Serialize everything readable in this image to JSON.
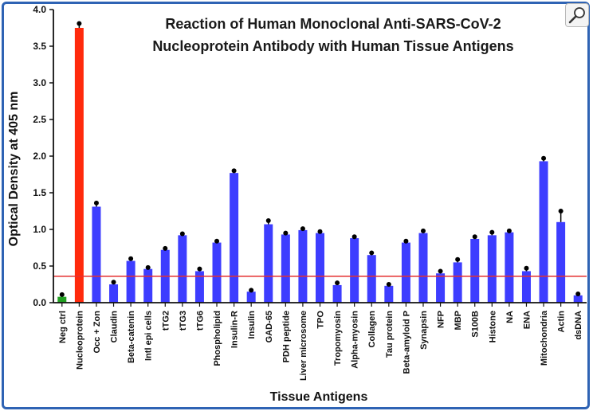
{
  "chart_data": {
    "type": "bar",
    "title_lines": [
      "Reaction of Human Monoclonal Anti-SARS-CoV-2",
      "Nucleoprotein Antibody with Human Tissue Antigens"
    ],
    "xlabel": "Tissue Antigens",
    "ylabel": "Optical Density at 405 nm",
    "ylim": [
      0,
      4.0
    ],
    "yticks": [
      "0.0",
      "0.5",
      "1.0",
      "1.5",
      "2.0",
      "2.5",
      "3.0",
      "3.5",
      "4.0"
    ],
    "categories": [
      "Neg ctrl",
      "Nucleoprotein",
      "Occ + Zon",
      "Claudin",
      "Beta-catenin",
      "Intl epi cells",
      "tTG2",
      "tTG3",
      "tTG6",
      "Phospholipid",
      "Insulin-R",
      "Insulin",
      "GAD-65",
      "PDH peptide",
      "Liver microsome",
      "TPO",
      "Tropomyosin",
      "Alpha-myosin",
      "Collagen",
      "Tau protein",
      "Beta-amyloid P",
      "Synapsin",
      "NFP",
      "MBP",
      "S100B",
      "Histone",
      "NA",
      "ENA",
      "Mitochondria",
      "Actin",
      "dsDNA"
    ],
    "values": [
      0.08,
      3.75,
      1.31,
      0.25,
      0.57,
      0.46,
      0.72,
      0.92,
      0.43,
      0.82,
      1.77,
      0.15,
      1.07,
      0.93,
      0.99,
      0.95,
      0.24,
      0.88,
      0.65,
      0.23,
      0.82,
      0.95,
      0.4,
      0.55,
      0.87,
      0.92,
      0.96,
      0.43,
      1.93,
      1.1,
      0.1
    ],
    "errors": [
      0.03,
      0.06,
      0.05,
      0.03,
      0.03,
      0.02,
      0.02,
      0.02,
      0.03,
      0.02,
      0.03,
      0.02,
      0.05,
      0.02,
      0.02,
      0.02,
      0.03,
      0.02,
      0.03,
      0.02,
      0.02,
      0.03,
      0.03,
      0.04,
      0.03,
      0.04,
      0.02,
      0.04,
      0.04,
      0.15,
      0.02
    ],
    "bar_colors": [
      "#22a022",
      "#ff2a0c",
      "#3d3dff",
      "#3d3dff",
      "#3d3dff",
      "#3d3dff",
      "#3d3dff",
      "#3d3dff",
      "#3d3dff",
      "#3d3dff",
      "#3d3dff",
      "#3d3dff",
      "#3d3dff",
      "#3d3dff",
      "#3d3dff",
      "#3d3dff",
      "#3d3dff",
      "#3d3dff",
      "#3d3dff",
      "#3d3dff",
      "#3d3dff",
      "#3d3dff",
      "#3d3dff",
      "#3d3dff",
      "#3d3dff",
      "#3d3dff",
      "#3d3dff",
      "#3d3dff",
      "#3d3dff",
      "#3d3dff",
      "#3d3dff"
    ],
    "cutoff_value": 0.36,
    "cutoff_color": "#e53030",
    "grid": false,
    "legend": "none"
  },
  "ui": {
    "zoom_button_icon": "magnifier-icon"
  }
}
